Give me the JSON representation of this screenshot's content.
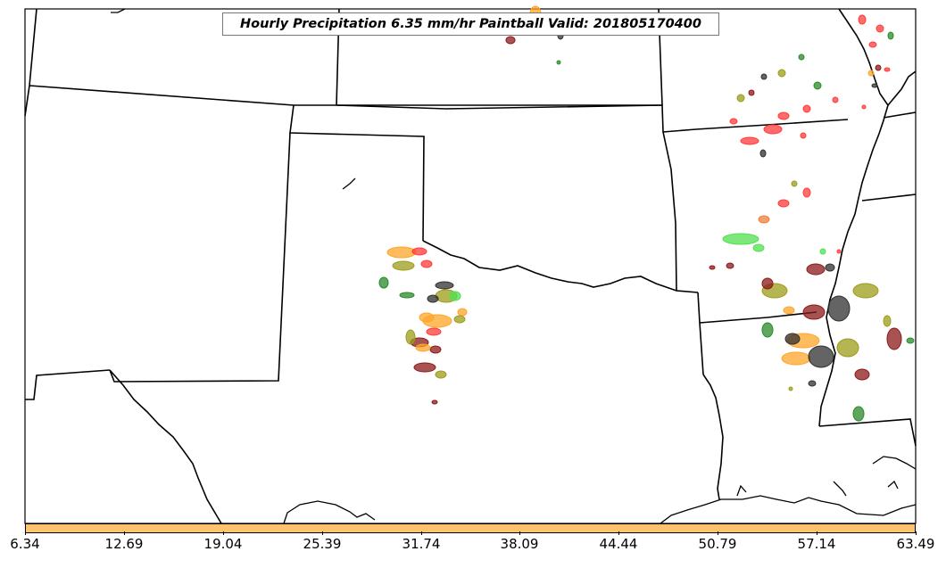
{
  "title": "Hourly Precipitation 6.35 mm/hr Paintball Valid: 201805170400",
  "colorbar": {
    "color": "#ffc46b",
    "tick_labels": [
      "6.34",
      "12.69",
      "19.04",
      "25.39",
      "31.74",
      "38.09",
      "44.44",
      "50.79",
      "57.14",
      "63.49"
    ]
  },
  "paintball_colors": [
    "#ff3b3b",
    "#ffa52a",
    "#9c9c1a",
    "#2a8a2a",
    "#50e050",
    "#8b1a1a",
    "#303030",
    "#f07f3a"
  ]
}
